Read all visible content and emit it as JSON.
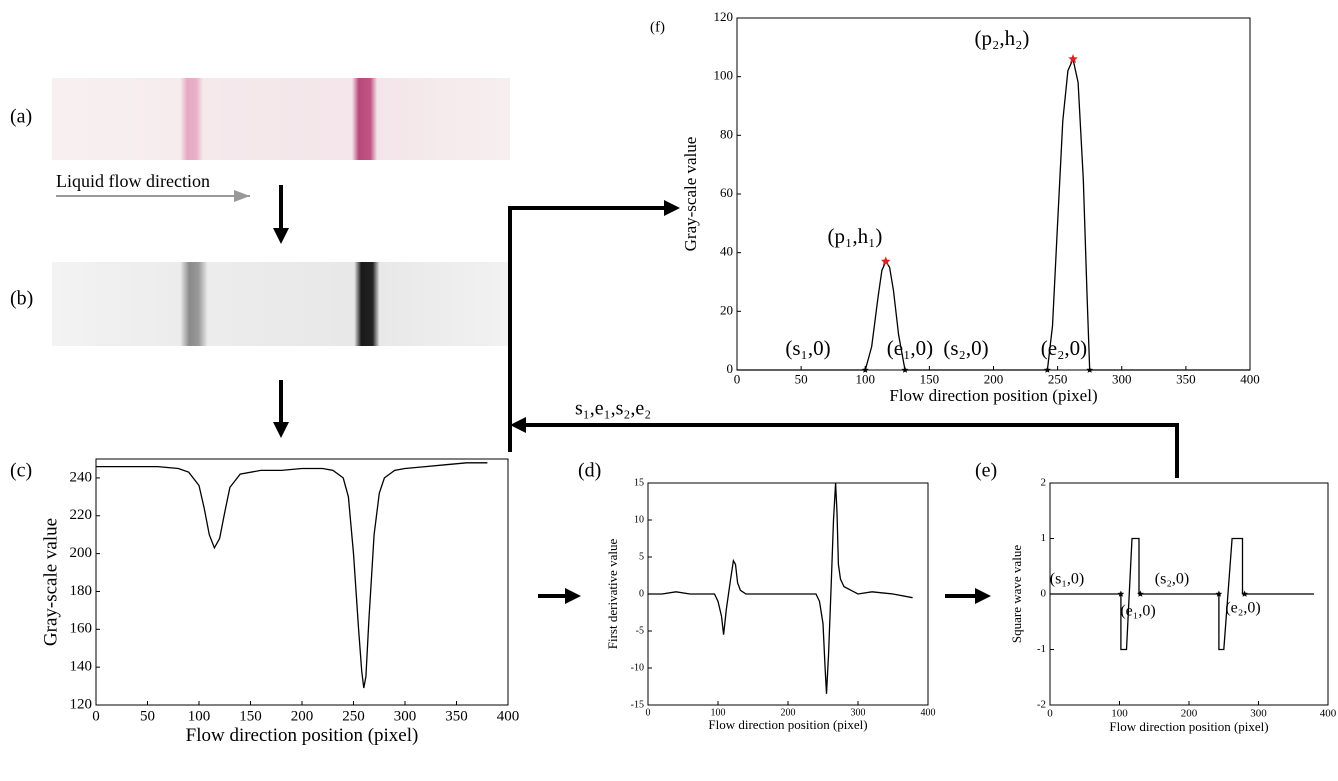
{
  "panel_a": "(a)",
  "panel_b": "(b)",
  "flow_label": "Liquid flow direction",
  "feedback_label": "s₁,e₁,s₂,e₂",
  "chart_data": [
    {
      "type": "line",
      "panel_label": "(c)",
      "x_label": "Flow direction position (pixel)",
      "y_label": "Gray-scale value",
      "xlim": [
        0,
        400
      ],
      "ylim": [
        120,
        250
      ],
      "xticks": [
        0,
        50,
        100,
        150,
        200,
        250,
        300,
        350,
        400
      ],
      "yticks": [
        120,
        140,
        160,
        180,
        200,
        220,
        240
      ],
      "series": [
        {
          "color": "#000000",
          "style": "line",
          "x": [
            0,
            20,
            40,
            60,
            80,
            90,
            100,
            105,
            110,
            115,
            120,
            125,
            130,
            140,
            160,
            180,
            200,
            220,
            230,
            240,
            245,
            250,
            255,
            258,
            260,
            262,
            265,
            270,
            275,
            280,
            290,
            300,
            320,
            340,
            360,
            380
          ],
          "values": [
            246,
            246,
            246,
            246,
            245,
            243,
            236,
            224,
            210,
            203,
            208,
            222,
            235,
            242,
            244,
            244,
            245,
            245,
            244,
            240,
            230,
            200,
            160,
            138,
            129,
            135,
            165,
            210,
            232,
            240,
            244,
            245,
            246,
            247,
            248,
            248
          ]
        }
      ],
      "annotations": []
    },
    {
      "type": "line",
      "panel_label": "(d)",
      "x_label": "Flow direction position (pixel)",
      "y_label": "First derivative value",
      "xlim": [
        0,
        400
      ],
      "ylim": [
        -15,
        15
      ],
      "xticks": [
        0,
        100,
        200,
        300,
        400
      ],
      "yticks": [
        -15,
        -10,
        -5,
        0,
        5,
        10,
        15
      ],
      "series": [
        {
          "color": "#000000",
          "style": "line",
          "x": [
            0,
            20,
            40,
            60,
            80,
            95,
            100,
            105,
            108,
            112,
            118,
            122,
            125,
            128,
            132,
            140,
            160,
            200,
            240,
            245,
            250,
            253,
            255,
            258,
            262,
            265,
            268,
            270,
            272,
            275,
            280,
            290,
            300,
            320,
            350,
            378
          ],
          "values": [
            0,
            0,
            0.3,
            0,
            0,
            0,
            -1,
            -3,
            -5.5,
            -2,
            2,
            4.5,
            4,
            1.5,
            0.5,
            0,
            0,
            0,
            0,
            -1,
            -4,
            -10,
            -13.5,
            -8,
            2,
            10,
            15,
            11,
            4,
            2,
            1,
            0.5,
            0,
            0.3,
            0,
            -0.5
          ]
        }
      ],
      "annotations": []
    },
    {
      "type": "line",
      "panel_label": "(e)",
      "x_label": "Flow direction position (pixel)",
      "y_label": "Square wave value",
      "xlim": [
        0,
        400
      ],
      "ylim": [
        -2,
        2
      ],
      "xticks": [
        0,
        100,
        200,
        300,
        400
      ],
      "yticks": [
        -2,
        -1,
        0,
        1,
        2
      ],
      "series": [
        {
          "color": "#000000",
          "style": "line",
          "x": [
            0,
            102,
            102,
            110,
            118,
            128,
            128,
            243,
            243,
            250,
            262,
            277,
            277,
            380
          ],
          "values": [
            0,
            0,
            -1,
            -1,
            1,
            1,
            0,
            0,
            -1,
            -1,
            1,
            1,
            0,
            0
          ]
        },
        {
          "color": "#000000",
          "style": "marker",
          "x": [
            102,
            130,
            243,
            280
          ],
          "values": [
            0,
            0,
            0,
            0
          ]
        }
      ],
      "annotations": [
        "(s₁,0)",
        "(e₁,0)",
        "(s₂,0)",
        "(e₂,0)"
      ]
    },
    {
      "type": "line",
      "panel_label": "(f)",
      "x_label": "Flow direction position (pixel)",
      "y_label": "Gray-scale  value",
      "xlim": [
        0,
        400
      ],
      "ylim": [
        0,
        120
      ],
      "xticks": [
        0,
        50,
        100,
        150,
        200,
        250,
        300,
        350,
        400
      ],
      "yticks": [
        0,
        20,
        40,
        60,
        80,
        100,
        120
      ],
      "series": [
        {
          "color": "#000000",
          "style": "line",
          "x": [
            0,
            95,
            100,
            105,
            110,
            113,
            116,
            119,
            122,
            126,
            131,
            135,
            200,
            240,
            242,
            246,
            250,
            254,
            258,
            262,
            266,
            270,
            273,
            275,
            280,
            350,
            400
          ],
          "values": [
            0,
            0,
            0,
            8,
            25,
            34,
            37,
            35,
            27,
            12,
            0,
            0,
            0,
            0,
            0,
            15,
            50,
            85,
            102,
            106,
            98,
            65,
            25,
            0,
            0,
            0,
            0
          ]
        },
        {
          "color": "#e02020",
          "style": "marker",
          "x": [
            116,
            262
          ],
          "values": [
            37,
            106
          ]
        },
        {
          "color": "#000000",
          "style": "marker",
          "x": [
            100,
            131,
            242,
            275
          ],
          "values": [
            0,
            0,
            0,
            0
          ]
        }
      ],
      "annotations": [
        "(p₁,h₁)",
        "(p₂,h₂)",
        "(s₁,0)",
        "(e₁,0)",
        "(s₂,0)",
        "(e₂,0)"
      ]
    }
  ]
}
